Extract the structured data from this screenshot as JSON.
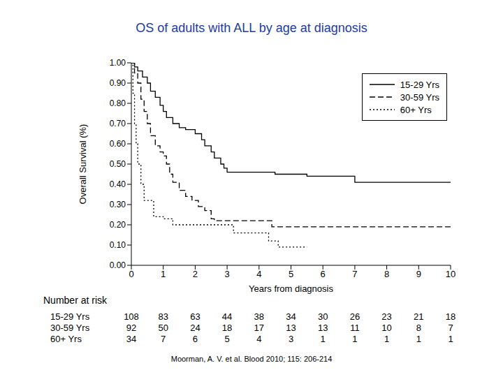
{
  "chart_data": {
    "type": "line",
    "title": "OS of adults with ALL by age at diagnosis",
    "x_label": "Years from diagnosis",
    "y_label": "Overall Survival (%)",
    "xlim": [
      0,
      10
    ],
    "xticks": [
      0,
      1,
      2,
      3,
      4,
      5,
      6,
      7,
      8,
      9,
      10
    ],
    "ylim": [
      0,
      1
    ],
    "yticks": [
      {
        "value": 0,
        "label": "0.00"
      },
      {
        "value": 0.1,
        "label": "0.10"
      },
      {
        "value": 0.2,
        "label": "0.20"
      },
      {
        "value": 0.3,
        "label": "0.30"
      },
      {
        "value": 0.4,
        "label": "0.40"
      },
      {
        "value": 0.5,
        "label": "0.50"
      },
      {
        "value": 0.6,
        "label": "0.60"
      },
      {
        "value": 0.7,
        "label": "0.70"
      },
      {
        "value": 0.8,
        "label": "0.80"
      },
      {
        "value": 0.9,
        "label": "0.90"
      },
      {
        "value": 1,
        "label": "1.00"
      }
    ],
    "grid": false,
    "legend": "upper right",
    "series": [
      {
        "name": "15-29 Yrs",
        "color": "#000000",
        "line_style": "solid",
        "x": [
          0,
          0.1,
          0.2,
          0.35,
          0.5,
          0.6,
          0.75,
          0.9,
          1.0,
          1.1,
          1.3,
          1.5,
          1.7,
          2.0,
          2.2,
          2.3,
          2.5,
          2.6,
          2.8,
          2.9,
          3.0,
          4.5,
          5.5,
          7.0,
          10
        ],
        "values": [
          1,
          0.98,
          0.96,
          0.93,
          0.9,
          0.86,
          0.83,
          0.79,
          0.76,
          0.73,
          0.7,
          0.68,
          0.67,
          0.65,
          0.62,
          0.59,
          0.56,
          0.53,
          0.5,
          0.48,
          0.46,
          0.45,
          0.44,
          0.41,
          0.41
        ]
      },
      {
        "name": "30-59 Yrs",
        "color": "#000000",
        "line_style": "dashed",
        "x": [
          0,
          0.1,
          0.2,
          0.3,
          0.4,
          0.5,
          0.6,
          0.75,
          0.9,
          1.0,
          1.1,
          1.2,
          1.3,
          1.5,
          1.7,
          1.9,
          2.1,
          2.3,
          2.5,
          2.6,
          4.4,
          10
        ],
        "values": [
          1,
          0.95,
          0.9,
          0.82,
          0.76,
          0.7,
          0.64,
          0.59,
          0.56,
          0.54,
          0.5,
          0.45,
          0.41,
          0.37,
          0.34,
          0.32,
          0.29,
          0.27,
          0.23,
          0.22,
          0.19,
          0.19
        ]
      },
      {
        "name": "60+ Yrs",
        "color": "#000000",
        "line_style": "dotted",
        "x": [
          0,
          0.05,
          0.1,
          0.15,
          0.2,
          0.3,
          0.4,
          0.7,
          1.0,
          1.3,
          3.2,
          4.3,
          4.6,
          5.0,
          5.5
        ],
        "values": [
          1,
          0.85,
          0.7,
          0.6,
          0.5,
          0.4,
          0.32,
          0.24,
          0.23,
          0.2,
          0.16,
          0.12,
          0.09,
          0.09,
          0.09
        ]
      }
    ],
    "at_risk": {
      "title": "Number at risk",
      "x": [
        0,
        1,
        2,
        3,
        4,
        5,
        6,
        7,
        8,
        9,
        10
      ],
      "rows": [
        {
          "name": "15-29 Yrs",
          "values": [
            108,
            83,
            63,
            44,
            38,
            34,
            30,
            26,
            23,
            21,
            18
          ]
        },
        {
          "name": "30-59 Yrs",
          "values": [
            92,
            50,
            24,
            18,
            17,
            13,
            13,
            11,
            10,
            8,
            7
          ]
        },
        {
          "name": "60+ Yrs",
          "values": [
            34,
            7,
            6,
            5,
            4,
            3,
            1,
            1,
            1,
            1,
            1
          ]
        }
      ]
    },
    "source": "Moorman, A. V. et al. Blood 2010; 115: 206-214"
  }
}
